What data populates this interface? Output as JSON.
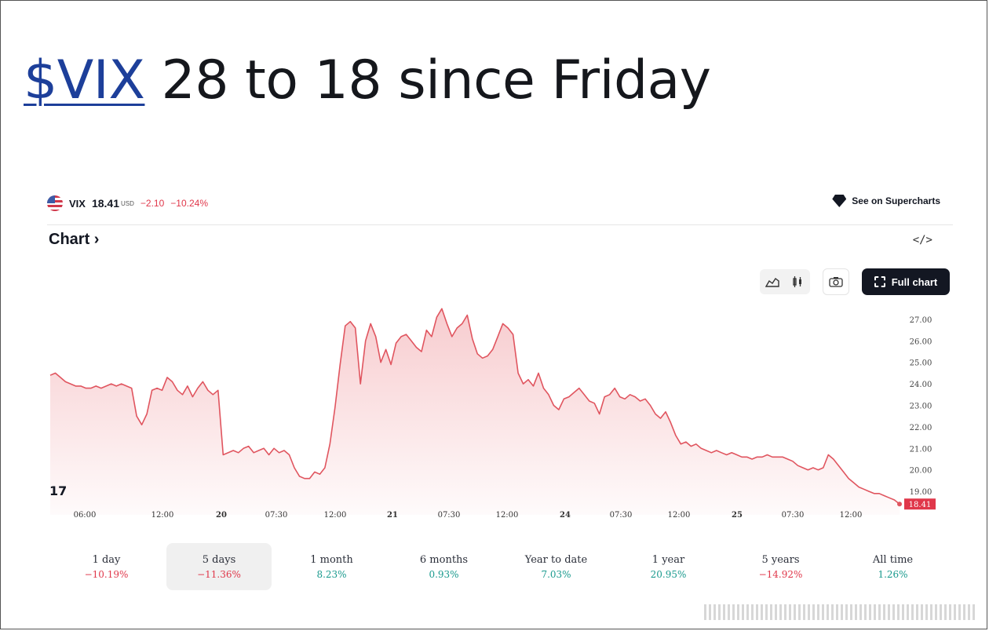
{
  "headline": {
    "ticker_link": "$VIX",
    "text": " 28 to 18 since Friday"
  },
  "widget": {
    "symbol": "VIX",
    "price": "18.41",
    "currency": "USD",
    "change": "−2.10",
    "change_pct": "−10.24%",
    "supercharts_label": "See on Supercharts",
    "chart_link": "Chart ›",
    "embed_glyph": "</>",
    "full_chart_label": "Full chart",
    "last_price_tag": "18.41",
    "tv_logo": "17"
  },
  "periods": [
    {
      "label": "1 day",
      "value": "−10.19%",
      "sign": "neg"
    },
    {
      "label": "5 days",
      "value": "−11.36%",
      "sign": "neg",
      "active": true
    },
    {
      "label": "1 month",
      "value": "8.23%",
      "sign": "pos"
    },
    {
      "label": "6 months",
      "value": "0.93%",
      "sign": "pos"
    },
    {
      "label": "Year to date",
      "value": "7.03%",
      "sign": "pos"
    },
    {
      "label": "1 year",
      "value": "20.95%",
      "sign": "pos"
    },
    {
      "label": "5 years",
      "value": "−14.92%",
      "sign": "neg"
    },
    {
      "label": "All time",
      "value": "1.26%",
      "sign": "pos"
    }
  ],
  "chart_data": {
    "type": "area",
    "title": "",
    "xlabel": "",
    "ylabel": "",
    "ylim": [
      18.2,
      27.4
    ],
    "y_ticks": [
      "27.00",
      "26.00",
      "25.00",
      "24.00",
      "23.00",
      "22.00",
      "21.00",
      "20.00",
      "19.00"
    ],
    "x_tick_labels": [
      "06:00",
      "12:00",
      "20",
      "07:30",
      "12:00",
      "21",
      "07:30",
      "12:00",
      "24",
      "07:30",
      "12:00",
      "25",
      "07:30",
      "12:00"
    ],
    "x_tick_bold": [
      false,
      false,
      true,
      false,
      false,
      true,
      false,
      false,
      true,
      false,
      false,
      true,
      false,
      false
    ],
    "line_color": "#e0555f",
    "fill_color": "#f7c9cc",
    "series": [
      {
        "values": [
          24.4,
          24.5,
          24.3,
          24.1,
          24.0,
          23.9,
          23.9,
          23.8,
          23.8,
          23.9,
          23.8,
          23.9,
          24.0,
          23.9,
          24.0,
          23.9,
          23.8,
          22.5,
          22.1,
          22.6,
          23.7,
          23.8,
          23.7,
          24.3,
          24.1,
          23.7,
          23.5,
          23.9,
          23.4,
          23.8,
          24.1,
          23.7,
          23.5,
          23.7,
          20.7,
          20.8,
          20.9,
          20.8,
          21.0,
          21.1,
          20.8,
          20.9,
          21.0,
          20.7,
          21.0,
          20.8,
          20.9,
          20.7,
          20.1,
          19.7,
          19.6,
          19.6,
          19.9,
          19.8,
          20.1,
          21.2,
          22.9,
          24.9,
          26.7,
          26.9,
          26.6,
          24.0,
          26.0,
          26.8,
          26.2,
          25.0,
          25.6,
          24.9,
          25.9,
          26.2,
          26.3,
          26.0,
          25.7,
          25.5,
          26.5,
          26.2,
          27.1,
          27.5,
          26.8,
          26.2,
          26.6,
          26.8,
          27.2,
          26.1,
          25.4,
          25.2,
          25.3,
          25.6,
          26.2,
          26.8,
          26.6,
          26.3,
          24.5,
          24.0,
          24.2,
          23.9,
          24.5,
          23.8,
          23.5,
          23.0,
          22.8,
          23.3,
          23.4,
          23.6,
          23.8,
          23.5,
          23.2,
          23.1,
          22.6,
          23.4,
          23.5,
          23.8,
          23.4,
          23.3,
          23.5,
          23.4,
          23.2,
          23.3,
          23.0,
          22.6,
          22.4,
          22.7,
          22.2,
          21.6,
          21.2,
          21.3,
          21.1,
          21.2,
          21.0,
          20.9,
          20.8,
          20.9,
          20.8,
          20.7,
          20.8,
          20.7,
          20.6,
          20.6,
          20.5,
          20.6,
          20.6,
          20.7,
          20.6,
          20.6,
          20.6,
          20.5,
          20.4,
          20.2,
          20.1,
          20.0,
          20.1,
          20.0,
          20.1,
          20.7,
          20.5,
          20.2,
          19.9,
          19.6,
          19.4,
          19.2,
          19.1,
          19.0,
          18.9,
          18.9,
          18.8,
          18.7,
          18.6,
          18.41
        ]
      }
    ]
  }
}
